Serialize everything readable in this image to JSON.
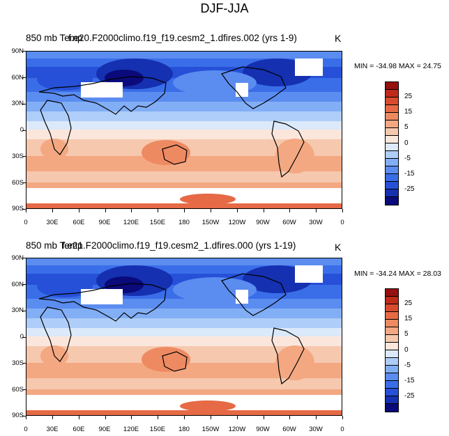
{
  "figure": {
    "title": "DJF-JJA"
  },
  "colorbar": {
    "colors": [
      "#0a0a7a",
      "#1530b0",
      "#2650d8",
      "#3a6ee8",
      "#5b8cf0",
      "#82aef5",
      "#aecdf8",
      "#dbe9fb",
      "#fbe6dc",
      "#f6c8ae",
      "#f3a882",
      "#ee8a62",
      "#e66a45",
      "#d94b2e",
      "#bf2a1a",
      "#961010"
    ],
    "tick_labels": [
      "-25",
      "-15",
      "-5",
      "0",
      "5",
      "15",
      "25"
    ]
  },
  "axes": {
    "lat_labels": [
      "90N",
      "60N",
      "30N",
      "0",
      "30S",
      "60S",
      "90S"
    ],
    "lon_labels": [
      "0",
      "30E",
      "60E",
      "90E",
      "120E",
      "150E",
      "180",
      "150W",
      "120W",
      "90W",
      "60W",
      "30W",
      "0"
    ]
  },
  "panels": [
    {
      "variable": "850 mb Temp",
      "case": "f.e20.F2000climo.f19_f19.cesm2_1.dfires.002 (yrs 1-9)",
      "units": "K",
      "stats": "MIN = -34.98 MAX =  24.75"
    },
    {
      "variable": "850 mb Temp",
      "case": "f.e21.F2000climo.f19_f19.cesm2_1.dfires.000 (yrs 1-19)",
      "units": "K",
      "stats": "MIN = -34.24 MAX =  28.03"
    }
  ]
}
